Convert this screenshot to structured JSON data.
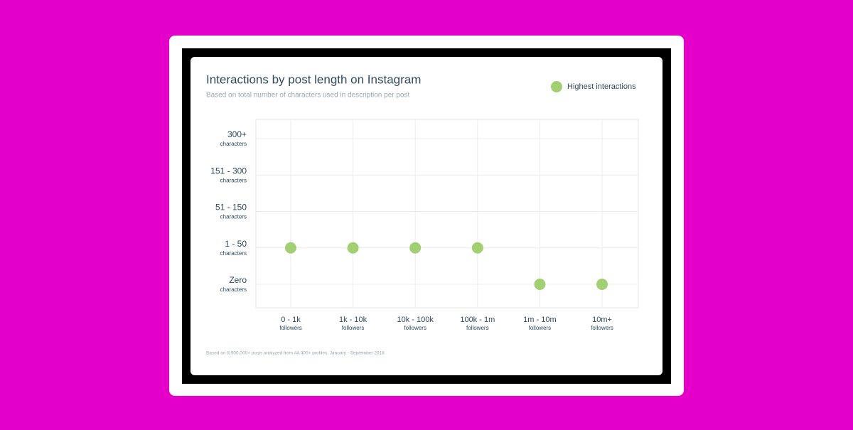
{
  "chart_data": {
    "type": "scatter",
    "title": "Interactions by post length on Instagram",
    "subtitle": "Based on total number of characters used in description per post",
    "footnote": "Based on 8,900,000+ posts analyzed from 44,400+ profiles, January - September 2018",
    "categories": [
      "0 - 1k",
      "1k - 10k",
      "10k - 100k",
      "100k - 1m",
      "1m - 10m",
      "10m+"
    ],
    "x_sublabel": "followers",
    "y_categories": [
      "Zero",
      "1 - 50",
      "51 - 150",
      "151 - 300",
      "300+"
    ],
    "y_sublabel": "characters",
    "series": [
      {
        "name": "Highest interactions",
        "color": "#a0d070",
        "values": [
          "1 - 50",
          "1 - 50",
          "1 - 50",
          "1 - 50",
          "Zero",
          "Zero"
        ]
      }
    ],
    "grid": true,
    "legend": "top-right"
  }
}
